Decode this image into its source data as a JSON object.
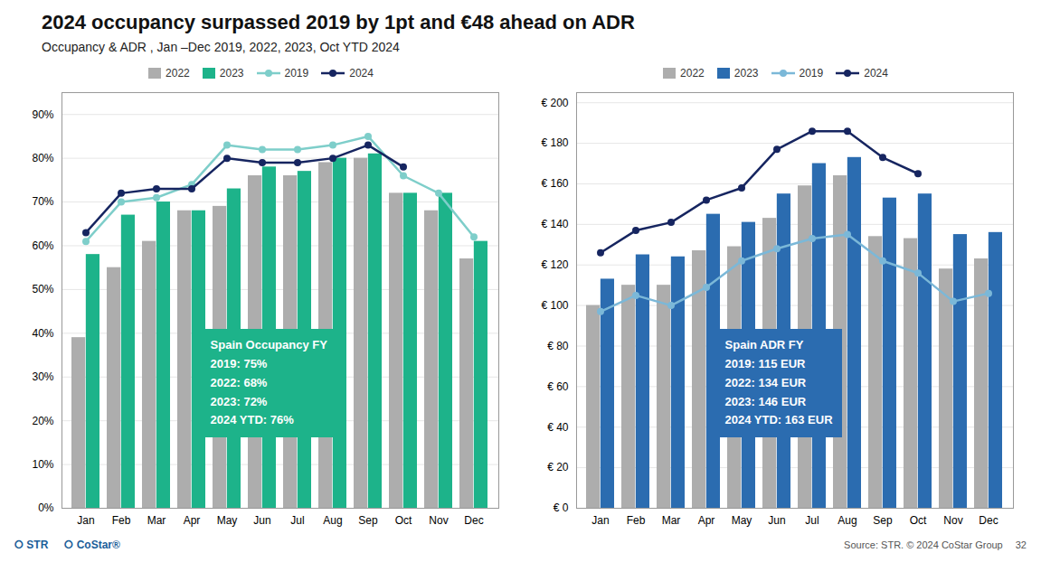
{
  "title": "2024 occupancy surpassed 2019 by 1pt and €48 ahead on ADR",
  "subtitle": "Occupancy & ADR , Jan –Dec 2019, 2022, 2023, Oct YTD 2024",
  "annotations": [
    "⭘ STR",
    "⭘ CoStar®",
    "Source: STR. © 2024 CoStar Group",
    "32"
  ],
  "chart_data": [
    {
      "type": "bar",
      "categories": [
        "Jan",
        "Feb",
        "Mar",
        "Apr",
        "May",
        "Jun",
        "Jul",
        "Aug",
        "Sep",
        "Oct",
        "Nov",
        "Dec"
      ],
      "series": [
        {
          "name": "2022",
          "type": "bar",
          "color": "#ADADAD",
          "values": [
            0.39,
            0.55,
            0.61,
            0.68,
            0.69,
            0.76,
            0.76,
            0.79,
            0.8,
            0.72,
            0.68,
            0.57
          ]
        },
        {
          "name": "2023",
          "type": "bar",
          "color": "#1DB38A",
          "values": [
            0.58,
            0.67,
            0.7,
            0.68,
            0.73,
            0.78,
            0.77,
            0.8,
            0.81,
            0.72,
            0.72,
            0.61
          ]
        },
        {
          "name": "2019",
          "type": "line",
          "marker": "o",
          "color": "#7ECECA",
          "values": [
            0.61,
            0.7,
            0.71,
            0.74,
            0.83,
            0.82,
            0.82,
            0.83,
            0.85,
            0.76,
            0.72,
            0.62
          ]
        },
        {
          "name": "2024",
          "type": "line",
          "marker": "o",
          "color": "#162560",
          "values": [
            0.63,
            0.72,
            0.73,
            0.73,
            0.8,
            0.79,
            0.79,
            0.8,
            0.83,
            0.78,
            null,
            null
          ]
        }
      ],
      "ylim": [
        0,
        0.95
      ],
      "yticks": [
        {
          "value": 0,
          "label": "0%"
        },
        {
          "value": 0.1,
          "label": "10%"
        },
        {
          "value": 0.2,
          "label": "20%"
        },
        {
          "value": 0.3,
          "label": "30%"
        },
        {
          "value": 0.4,
          "label": "40%"
        },
        {
          "value": 0.5,
          "label": "50%"
        },
        {
          "value": 0.6,
          "label": "60%"
        },
        {
          "value": 0.7,
          "label": "70%"
        },
        {
          "value": 0.8,
          "label": "80%"
        },
        {
          "value": 0.9,
          "label": "90%"
        }
      ],
      "grid": true,
      "legend": "top",
      "annotations": [
        {
          "text": "Spain Occupancy FY\n2019: 75%\n2022: 68%\n2023: 72%\n2024 YTD: 76%",
          "color": "#1DB38A"
        }
      ]
    },
    {
      "type": "bar",
      "categories": [
        "Jan",
        "Feb",
        "Mar",
        "Apr",
        "May",
        "Jun",
        "Jul",
        "Aug",
        "Sep",
        "Oct",
        "Nov",
        "Dec"
      ],
      "series": [
        {
          "name": "2022",
          "type": "bar",
          "color": "#ADADAD",
          "values": [
            100,
            110,
            110,
            127,
            129,
            143,
            159,
            164,
            134,
            133,
            118,
            123
          ]
        },
        {
          "name": "2023",
          "type": "bar",
          "color": "#2B6CB0",
          "values": [
            113,
            125,
            124,
            145,
            141,
            155,
            170,
            173,
            153,
            155,
            135,
            136
          ]
        },
        {
          "name": "2019",
          "type": "line",
          "marker": "o",
          "color": "#7BB8D8",
          "values": [
            97,
            105,
            100,
            109,
            122,
            128,
            133,
            135,
            122,
            116,
            102,
            106
          ]
        },
        {
          "name": "2024",
          "type": "line",
          "marker": "o",
          "color": "#162560",
          "values": [
            126,
            137,
            141,
            152,
            158,
            177,
            186,
            186,
            173,
            165,
            null,
            null
          ]
        }
      ],
      "ylim": [
        0,
        205
      ],
      "yticks": [
        {
          "value": 0,
          "label": "€ 0"
        },
        {
          "value": 20,
          "label": "€ 20"
        },
        {
          "value": 40,
          "label": "€ 40"
        },
        {
          "value": 60,
          "label": "€ 60"
        },
        {
          "value": 80,
          "label": "€ 80"
        },
        {
          "value": 100,
          "label": "€ 100"
        },
        {
          "value": 120,
          "label": "€ 120"
        },
        {
          "value": 140,
          "label": "€ 140"
        },
        {
          "value": 160,
          "label": "€ 160"
        },
        {
          "value": 180,
          "label": "€ 180"
        },
        {
          "value": 200,
          "label": "€ 200"
        }
      ],
      "grid": true,
      "legend": "top",
      "annotations": [
        {
          "text": "Spain ADR FY\n2019: 115 EUR\n2022: 134 EUR\n2023: 146 EUR\n2024 YTD: 163 EUR",
          "color": "#2B6CB0"
        }
      ]
    }
  ]
}
